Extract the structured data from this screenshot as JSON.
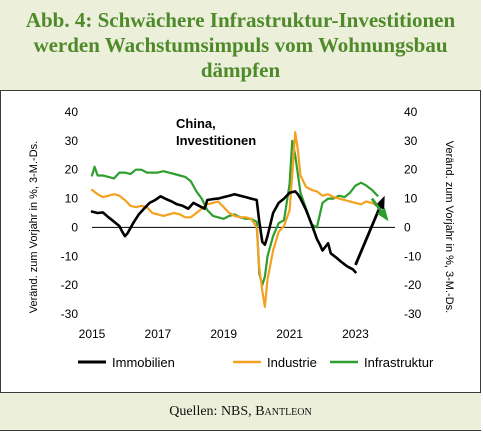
{
  "title": "Abb. 4: Schwächere Infrastruktur-Investitionen werden Wachstumsimpuls vom Wohnungsbau dämpfen",
  "source_prefix": "Quellen: NBS, ",
  "source_brand": "Bantleon",
  "colors": {
    "immobilien": "#000000",
    "industrie": "#f4a11f",
    "infrastruktur": "#2e9e2e",
    "title": "#4e8a2a",
    "header_bg": "#ecefd9"
  },
  "chart_data": {
    "type": "line",
    "annotation": "China,\nInvestitionen",
    "ylabel_left": "Veränd. zum Vorjahr in %, 3-M.-Ds.",
    "ylabel_right": "Veränd. zum Vorjahr in %, 3-M.-Ds.",
    "xlim": [
      2015.0,
      2024.2
    ],
    "ylim": [
      -30,
      40
    ],
    "yticks": [
      40,
      30,
      20,
      10,
      0,
      -10,
      -20,
      -30
    ],
    "xticks": [
      2015,
      2017,
      2019,
      2021,
      2023
    ],
    "legend": [
      "Immobilien",
      "Industrie",
      "Infrastruktur"
    ],
    "series": [
      {
        "name": "Immobilien",
        "color": "#000000",
        "data": [
          [
            2015.0,
            5.5
          ],
          [
            2015.17,
            5.0
          ],
          [
            2015.33,
            5.2
          ],
          [
            2015.5,
            3.5
          ],
          [
            2015.67,
            2.0
          ],
          [
            2015.83,
            0.5
          ],
          [
            2015.92,
            -1.5
          ],
          [
            2016.0,
            -3.0
          ],
          [
            2016.08,
            -2.0
          ],
          [
            2016.25,
            1.5
          ],
          [
            2016.42,
            4.5
          ],
          [
            2016.58,
            6.5
          ],
          [
            2016.75,
            8.5
          ],
          [
            2016.92,
            9.5
          ],
          [
            2017.08,
            10.8
          ],
          [
            2017.25,
            9.8
          ],
          [
            2017.42,
            9.0
          ],
          [
            2017.58,
            8.0
          ],
          [
            2017.75,
            7.5
          ],
          [
            2017.92,
            6.5
          ],
          [
            2018.08,
            8.5
          ],
          [
            2018.25,
            7.5
          ],
          [
            2018.42,
            6.5
          ],
          [
            2018.5,
            9.5
          ],
          [
            2018.67,
            9.8
          ],
          [
            2018.83,
            10.0
          ],
          [
            2019.0,
            10.5
          ],
          [
            2019.17,
            11.0
          ],
          [
            2019.33,
            11.5
          ],
          [
            2019.5,
            11.0
          ],
          [
            2019.67,
            10.5
          ],
          [
            2019.83,
            10.0
          ],
          [
            2020.0,
            9.5
          ],
          [
            2020.08,
            2.0
          ],
          [
            2020.17,
            -5.0
          ],
          [
            2020.25,
            -6.0
          ],
          [
            2020.33,
            -3.0
          ],
          [
            2020.5,
            5.0
          ],
          [
            2020.67,
            8.5
          ],
          [
            2020.83,
            10.0
          ],
          [
            2021.0,
            12.0
          ],
          [
            2021.17,
            12.5
          ],
          [
            2021.25,
            11.5
          ],
          [
            2021.33,
            10.0
          ],
          [
            2021.5,
            6.0
          ],
          [
            2021.67,
            1.0
          ],
          [
            2021.83,
            -4.0
          ],
          [
            2021.92,
            -6.0
          ],
          [
            2022.0,
            -8.0
          ],
          [
            2022.17,
            -5.5
          ],
          [
            2022.25,
            -9.0
          ],
          [
            2022.42,
            -10.5
          ],
          [
            2022.58,
            -12.0
          ],
          [
            2022.75,
            -13.5
          ],
          [
            2022.92,
            -14.5
          ],
          [
            2023.0,
            -15.5
          ]
        ]
      },
      {
        "name": "Industrie",
        "color": "#f4a11f",
        "data": [
          [
            2015.0,
            13.0
          ],
          [
            2015.17,
            11.5
          ],
          [
            2015.33,
            10.5
          ],
          [
            2015.5,
            11.0
          ],
          [
            2015.67,
            11.5
          ],
          [
            2015.83,
            11.0
          ],
          [
            2016.0,
            9.5
          ],
          [
            2016.17,
            7.5
          ],
          [
            2016.33,
            7.0
          ],
          [
            2016.5,
            7.5
          ],
          [
            2016.67,
            7.0
          ],
          [
            2016.83,
            5.0
          ],
          [
            2017.0,
            4.5
          ],
          [
            2017.17,
            4.0
          ],
          [
            2017.33,
            4.5
          ],
          [
            2017.5,
            5.0
          ],
          [
            2017.67,
            4.5
          ],
          [
            2017.83,
            3.5
          ],
          [
            2018.0,
            3.5
          ],
          [
            2018.17,
            5.0
          ],
          [
            2018.33,
            6.5
          ],
          [
            2018.5,
            8.0
          ],
          [
            2018.67,
            8.5
          ],
          [
            2018.83,
            9.0
          ],
          [
            2019.0,
            7.0
          ],
          [
            2019.17,
            5.0
          ],
          [
            2019.33,
            4.0
          ],
          [
            2019.5,
            3.5
          ],
          [
            2019.67,
            3.5
          ],
          [
            2019.83,
            3.0
          ],
          [
            2020.0,
            0.0
          ],
          [
            2020.08,
            -14.0
          ],
          [
            2020.17,
            -22.0
          ],
          [
            2020.25,
            -27.5
          ],
          [
            2020.33,
            -18.0
          ],
          [
            2020.5,
            -8.0
          ],
          [
            2020.67,
            -1.5
          ],
          [
            2020.83,
            0.5
          ],
          [
            2021.0,
            6.0
          ],
          [
            2021.08,
            18.0
          ],
          [
            2021.17,
            33.0
          ],
          [
            2021.25,
            27.0
          ],
          [
            2021.33,
            18.0
          ],
          [
            2021.5,
            14.0
          ],
          [
            2021.67,
            13.0
          ],
          [
            2021.83,
            12.5
          ],
          [
            2022.0,
            11.0
          ],
          [
            2022.17,
            11.5
          ],
          [
            2022.33,
            10.5
          ],
          [
            2022.5,
            10.0
          ],
          [
            2022.67,
            9.5
          ],
          [
            2022.83,
            9.0
          ],
          [
            2023.0,
            8.5
          ],
          [
            2023.17,
            8.0
          ],
          [
            2023.33,
            9.0
          ],
          [
            2023.5,
            8.5
          ],
          [
            2023.67,
            7.5
          ]
        ]
      },
      {
        "name": "Infrastruktur",
        "color": "#2e9e2e",
        "data": [
          [
            2015.0,
            18.0
          ],
          [
            2015.08,
            21.0
          ],
          [
            2015.17,
            18.0
          ],
          [
            2015.33,
            18.0
          ],
          [
            2015.5,
            17.5
          ],
          [
            2015.67,
            17.0
          ],
          [
            2015.83,
            19.0
          ],
          [
            2016.0,
            19.0
          ],
          [
            2016.17,
            18.5
          ],
          [
            2016.33,
            20.0
          ],
          [
            2016.5,
            20.0
          ],
          [
            2016.67,
            19.0
          ],
          [
            2016.83,
            19.0
          ],
          [
            2017.0,
            19.0
          ],
          [
            2017.17,
            19.5
          ],
          [
            2017.33,
            19.0
          ],
          [
            2017.5,
            18.5
          ],
          [
            2017.67,
            18.0
          ],
          [
            2017.83,
            17.5
          ],
          [
            2018.0,
            16.0
          ],
          [
            2018.17,
            12.5
          ],
          [
            2018.33,
            10.0
          ],
          [
            2018.5,
            6.0
          ],
          [
            2018.67,
            4.0
          ],
          [
            2018.83,
            3.5
          ],
          [
            2019.0,
            3.0
          ],
          [
            2019.17,
            4.0
          ],
          [
            2019.33,
            4.5
          ],
          [
            2019.5,
            3.5
          ],
          [
            2019.67,
            3.0
          ],
          [
            2019.83,
            3.0
          ],
          [
            2020.0,
            2.0
          ],
          [
            2020.08,
            -16.0
          ],
          [
            2020.17,
            -20.0
          ],
          [
            2020.25,
            -17.0
          ],
          [
            2020.33,
            -10.0
          ],
          [
            2020.5,
            -3.0
          ],
          [
            2020.67,
            1.5
          ],
          [
            2020.83,
            2.5
          ],
          [
            2021.0,
            15.0
          ],
          [
            2021.08,
            30.0
          ],
          [
            2021.17,
            25.0
          ],
          [
            2021.33,
            12.0
          ],
          [
            2021.5,
            6.5
          ],
          [
            2021.67,
            1.0
          ],
          [
            2021.83,
            0.0
          ],
          [
            2022.0,
            8.5
          ],
          [
            2022.17,
            10.0
          ],
          [
            2022.33,
            10.0
          ],
          [
            2022.5,
            11.0
          ],
          [
            2022.67,
            10.5
          ],
          [
            2022.83,
            12.0
          ],
          [
            2023.0,
            14.5
          ],
          [
            2023.17,
            15.5
          ],
          [
            2023.33,
            14.5
          ],
          [
            2023.5,
            13.0
          ],
          [
            2023.67,
            11.0
          ]
        ]
      }
    ],
    "forecasts": [
      {
        "name": "Immobilien",
        "color": "#000000",
        "from": [
          2023.0,
          -13.0
        ],
        "to": [
          2023.85,
          10.0
        ]
      },
      {
        "name": "Infrastruktur",
        "color": "#2e9e2e",
        "from": [
          2023.5,
          10.0
        ],
        "to": [
          2023.95,
          3.0
        ]
      }
    ]
  }
}
